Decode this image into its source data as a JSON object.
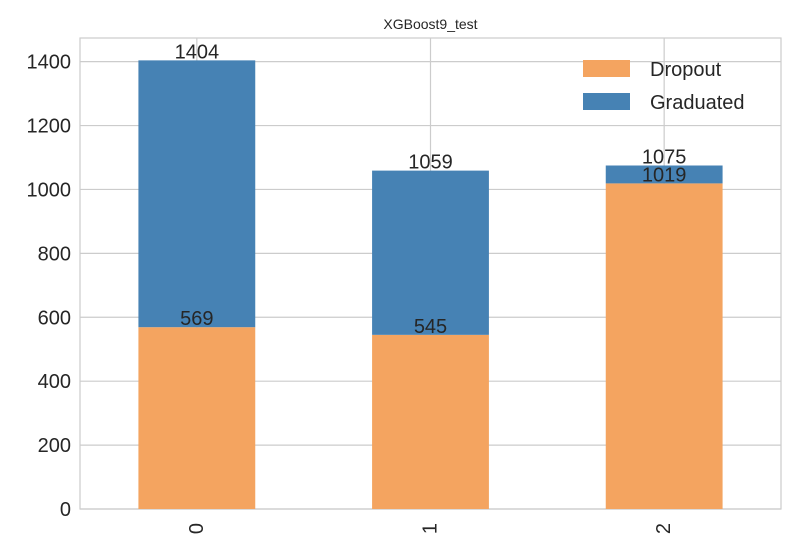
{
  "chart_data": {
    "type": "bar",
    "stacked": true,
    "title": "XGBoost9_test",
    "xlabel": "",
    "ylabel": "",
    "categories": [
      "0",
      "1",
      "2"
    ],
    "series": [
      {
        "name": "Dropout",
        "values": [
          569,
          545,
          1019
        ],
        "color": "#f4a460"
      },
      {
        "name": "Graduated",
        "values": [
          835,
          514,
          56
        ],
        "color": "#4682b4"
      }
    ],
    "bar_labels": {
      "Dropout": [
        "569",
        "545",
        "1019"
      ],
      "Graduated": [
        "1404",
        "1059",
        "1075"
      ]
    },
    "yticks": [
      0,
      200,
      400,
      600,
      800,
      1000,
      1200,
      1400
    ],
    "ylim": [
      0,
      1474
    ],
    "grid": true,
    "legend": "top-right",
    "xtick_rotation": 90
  }
}
